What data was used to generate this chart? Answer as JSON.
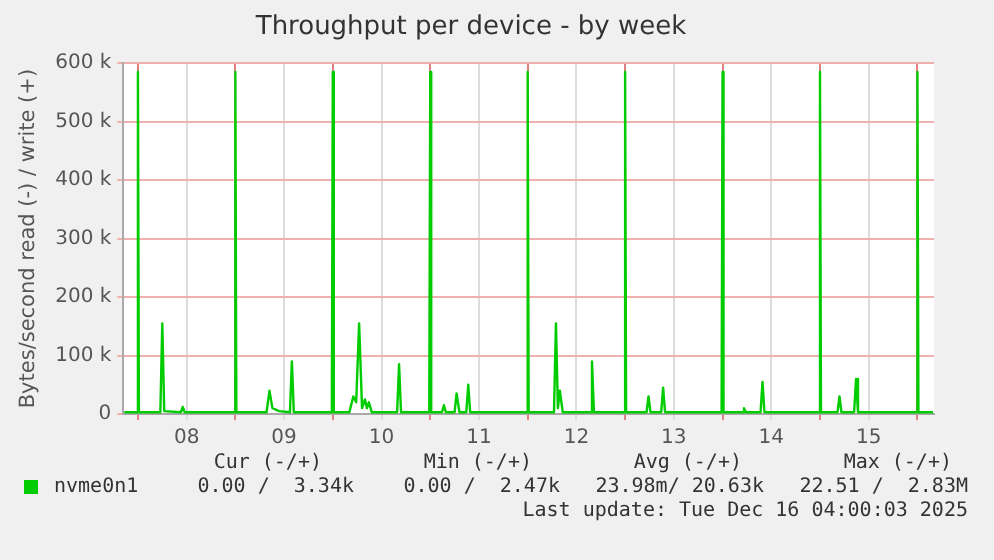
{
  "chart_data": {
    "type": "line",
    "title": "Throughput per device - by week",
    "ylabel": "Bytes/second read (-) / write (+)",
    "xlim": [
      7.85,
      16.17
    ],
    "xticks": [
      {
        "value": 8,
        "label": null
      },
      {
        "value": 8.5,
        "label": "08"
      },
      {
        "value": 9,
        "label": null
      },
      {
        "value": 9.5,
        "label": "09"
      },
      {
        "value": 10,
        "label": null
      },
      {
        "value": 10.5,
        "label": "10"
      },
      {
        "value": 11,
        "label": null
      },
      {
        "value": 11.5,
        "label": "11"
      },
      {
        "value": 12,
        "label": null
      },
      {
        "value": 12.5,
        "label": "12"
      },
      {
        "value": 13,
        "label": null
      },
      {
        "value": 13.5,
        "label": "13"
      },
      {
        "value": 14,
        "label": null
      },
      {
        "value": 14.5,
        "label": "14"
      },
      {
        "value": 15,
        "label": null
      },
      {
        "value": 15.5,
        "label": "15"
      },
      {
        "value": 16,
        "label": null
      }
    ],
    "ylim": [
      0,
      600000
    ],
    "yticks": [
      {
        "value": 0,
        "label": "0"
      },
      {
        "value": 100000,
        "label": "100 k"
      },
      {
        "value": 200000,
        "label": "200 k"
      },
      {
        "value": 300000,
        "label": "300 k"
      },
      {
        "value": 400000,
        "label": "400 k"
      },
      {
        "value": 500000,
        "label": "500 k"
      },
      {
        "value": 600000,
        "label": "600 k"
      }
    ],
    "grid": true,
    "legend": "bottom",
    "marker": "none",
    "line_style": "solid",
    "series": [
      {
        "name": "nvme0n1",
        "color": "#00cc00",
        "x": [
          7.86,
          7.99,
          8.0,
          8.01,
          8.23,
          8.25,
          8.27,
          8.44,
          8.46,
          8.48,
          8.99,
          9.0,
          9.01,
          9.32,
          9.35,
          9.38,
          9.45,
          9.56,
          9.58,
          9.6,
          9.99,
          10.0,
          10.01,
          10.17,
          10.21,
          10.24,
          10.27,
          10.3,
          10.33,
          10.35,
          10.37,
          10.4,
          10.66,
          10.68,
          10.7,
          10.99,
          11.0,
          11.01,
          11.12,
          11.14,
          11.16,
          11.25,
          11.27,
          11.3,
          11.37,
          11.39,
          11.41,
          11.99,
          12.0,
          12.01,
          12.27,
          12.29,
          12.31,
          12.33,
          12.36,
          12.64,
          12.66,
          12.68,
          12.99,
          13.0,
          13.01,
          13.22,
          13.24,
          13.26,
          13.37,
          13.39,
          13.41,
          13.99,
          14.0,
          14.01,
          14.2,
          14.22,
          14.24,
          14.39,
          14.41,
          14.43,
          14.99,
          15.0,
          15.01,
          15.18,
          15.2,
          15.22,
          15.35,
          15.37,
          15.39,
          15.99,
          16.0,
          16.01,
          16.16
        ],
        "values": [
          3000,
          3000,
          585000,
          3000,
          3000,
          155000,
          5000,
          3000,
          12000,
          3000,
          3000,
          585000,
          3000,
          3000,
          40000,
          10000,
          5000,
          3000,
          90000,
          3000,
          3000,
          585000,
          3000,
          3000,
          30000,
          20000,
          155000,
          10000,
          25000,
          10000,
          20000,
          3000,
          3000,
          85000,
          3000,
          3000,
          585000,
          3000,
          3000,
          15000,
          3000,
          3000,
          35000,
          3000,
          3000,
          50000,
          3000,
          3000,
          585000,
          3000,
          3000,
          155000,
          10000,
          40000,
          3000,
          3000,
          90000,
          3000,
          3000,
          585000,
          3000,
          3000,
          30000,
          3000,
          3000,
          45000,
          3000,
          3000,
          585000,
          3000,
          3000,
          10000,
          3000,
          3000,
          55000,
          3000,
          3000,
          585000,
          3000,
          3000,
          30000,
          3000,
          3000,
          60000,
          3000,
          3000,
          585000,
          3000,
          3000
        ]
      }
    ],
    "annotations": [
      "Cur (-/+)",
      "Min (-/+)",
      "Avg (-/+)",
      "Max (-/+)",
      "0.00 /  3.34k",
      "0.00 /  2.47k",
      "23.98m/ 20.63k",
      "22.51 /  2.83M",
      "Last update: Tue Dec 16 04:00:03 2025"
    ]
  }
}
